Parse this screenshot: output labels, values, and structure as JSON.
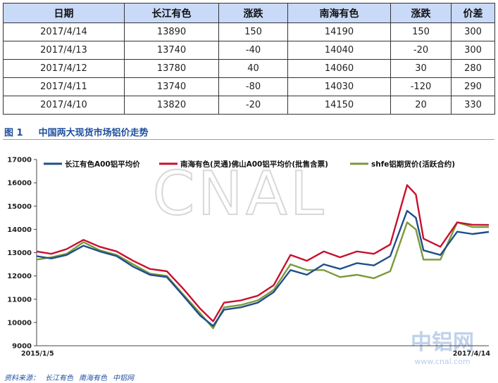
{
  "table": {
    "headers": [
      "日期",
      "长江有色",
      "涨跌",
      "南海有色",
      "涨跌",
      "价差"
    ],
    "rows": [
      [
        "2017/4/14",
        "13890",
        "150",
        "14190",
        "150",
        "300"
      ],
      [
        "2017/4/13",
        "13740",
        "-40",
        "14040",
        "-20",
        "300"
      ],
      [
        "2017/4/12",
        "13780",
        "40",
        "14060",
        "30",
        "280"
      ],
      [
        "2017/4/11",
        "13740",
        "-80",
        "14030",
        "-120",
        "290"
      ],
      [
        "2017/4/10",
        "13820",
        "-20",
        "14150",
        "20",
        "330"
      ]
    ]
  },
  "figure": {
    "number": "图 1",
    "title": "中国两大现货市场铝价走势"
  },
  "watermark": {
    "main": "CNAL",
    "logo": "中铝网",
    "url": "www.cnal.com"
  },
  "source": {
    "label": "资料来源：",
    "items": [
      "长江有色",
      "南海有色",
      "中铝网"
    ]
  },
  "colors": {
    "changjiang": "#1f4e8c",
    "nanhai": "#c8102e",
    "shfe": "#7a9a3a",
    "header_bg": "#c9daf8",
    "caption": "#1f4e9e"
  },
  "chart_data": {
    "type": "line",
    "xlabel": "",
    "ylabel": "",
    "x_range": [
      "2015/1/5",
      "2017/4/14"
    ],
    "x_tick_labels": [
      "2015/1/5",
      "2017/4/14"
    ],
    "ylim": [
      9000,
      17000
    ],
    "y_ticks": [
      9000,
      10000,
      11000,
      12000,
      13000,
      14000,
      15000,
      16000,
      17000
    ],
    "grid": false,
    "legend": "top",
    "series": [
      {
        "name": "长江有色A00铝平均价",
        "color": "#1f4e8c",
        "x": [
          "2015/1/5",
          "2015/2/1",
          "2015/3/1",
          "2015/4/1",
          "2015/5/1",
          "2015/6/1",
          "2015/7/1",
          "2015/8/1",
          "2015/9/1",
          "2015/10/1",
          "2015/11/1",
          "2015/11/25",
          "2015/12/15",
          "2016/1/15",
          "2016/2/15",
          "2016/3/15",
          "2016/4/15",
          "2016/5/15",
          "2016/6/15",
          "2016/7/15",
          "2016/8/15",
          "2016/9/15",
          "2016/10/15",
          "2016/11/15",
          "2016/12/1",
          "2016/12/15",
          "2017/1/15",
          "2017/2/15",
          "2017/3/15",
          "2017/4/14"
        ],
        "values": [
          12850,
          12750,
          12900,
          13300,
          13050,
          12850,
          12400,
          12050,
          11950,
          11150,
          10300,
          9850,
          10550,
          10650,
          10850,
          11300,
          12250,
          12050,
          12500,
          12300,
          12550,
          12450,
          12850,
          14800,
          14500,
          13100,
          12900,
          13900,
          13800,
          13890
        ]
      },
      {
        "name": "南海有色(灵通)佛山A00铝平均价(批售含票)",
        "color": "#c8102e",
        "x": [
          "2015/1/5",
          "2015/2/1",
          "2015/3/1",
          "2015/4/1",
          "2015/5/1",
          "2015/6/1",
          "2015/7/1",
          "2015/8/1",
          "2015/9/1",
          "2015/10/1",
          "2015/11/1",
          "2015/11/25",
          "2015/12/15",
          "2016/1/15",
          "2016/2/15",
          "2016/3/15",
          "2016/4/15",
          "2016/5/15",
          "2016/6/15",
          "2016/7/15",
          "2016/8/15",
          "2016/9/15",
          "2016/10/15",
          "2016/11/15",
          "2016/12/1",
          "2016/12/15",
          "2017/1/15",
          "2017/2/15",
          "2017/3/15",
          "2017/4/14"
        ],
        "values": [
          13050,
          12950,
          13150,
          13550,
          13250,
          13050,
          12650,
          12300,
          12200,
          11450,
          10600,
          10050,
          10850,
          10950,
          11150,
          11600,
          12900,
          12650,
          13050,
          12800,
          13050,
          12950,
          13350,
          15900,
          15500,
          13600,
          13250,
          14300,
          14200,
          14190
        ]
      },
      {
        "name": "shfe铝期货价(活跃合约)",
        "color": "#7a9a3a",
        "x": [
          "2015/1/5",
          "2015/2/1",
          "2015/3/1",
          "2015/4/1",
          "2015/5/1",
          "2015/6/1",
          "2015/7/1",
          "2015/8/1",
          "2015/9/1",
          "2015/10/1",
          "2015/11/1",
          "2015/11/25",
          "2015/12/15",
          "2016/1/15",
          "2016/2/15",
          "2016/3/15",
          "2016/4/15",
          "2016/5/15",
          "2016/6/15",
          "2016/7/15",
          "2016/8/15",
          "2016/9/15",
          "2016/10/15",
          "2016/11/15",
          "2016/12/1",
          "2016/12/15",
          "2017/1/15",
          "2017/2/15",
          "2017/3/15",
          "2017/4/14"
        ],
        "values": [
          12700,
          12800,
          12950,
          13450,
          13100,
          12900,
          12500,
          12100,
          12000,
          11200,
          10400,
          9750,
          10650,
          10750,
          10950,
          11400,
          12500,
          12250,
          12250,
          11950,
          12050,
          11900,
          12200,
          14300,
          14000,
          12700,
          12700,
          14300,
          14100,
          14100
        ]
      }
    ]
  }
}
